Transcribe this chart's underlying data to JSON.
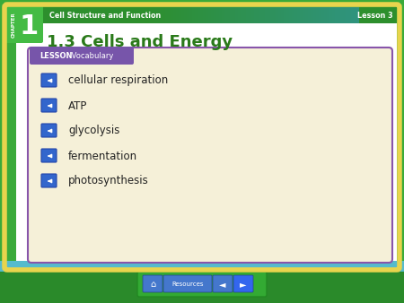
{
  "title": "1.3 Cells and Energy",
  "chapter_label": "CHAPTER",
  "chapter_number": "1",
  "top_bar_text": "Cell Structure and Function",
  "lesson_label": "Lesson 3",
  "lesson_box_title_bold": "LESSON",
  "lesson_box_title_normal": " Vocabulary",
  "vocab_items": [
    "cellular respiration",
    "ATP",
    "glycolysis",
    "fermentation",
    "photosynthesis"
  ],
  "bg_green": "#3aaa3a",
  "bg_green_dark": "#2a8a2a",
  "top_bar_green": "#2d8f2d",
  "top_bar_blue": "#4488cc",
  "chapter_box_green": "#44bb44",
  "white": "#ffffff",
  "yellow_border": "#e8d44d",
  "vocab_box_bg": "#f5f0d8",
  "vocab_box_border": "#8855aa",
  "lesson_tab_color": "#7755aa",
  "title_color": "#2a7a1a",
  "top_text_color": "#ffffff",
  "vocab_text_color": "#222222",
  "icon_bg_color": "#3366cc",
  "icon_border_color": "#2244aa",
  "resources_bg": "#44aa44",
  "resources_btn_bg": "#4477cc"
}
